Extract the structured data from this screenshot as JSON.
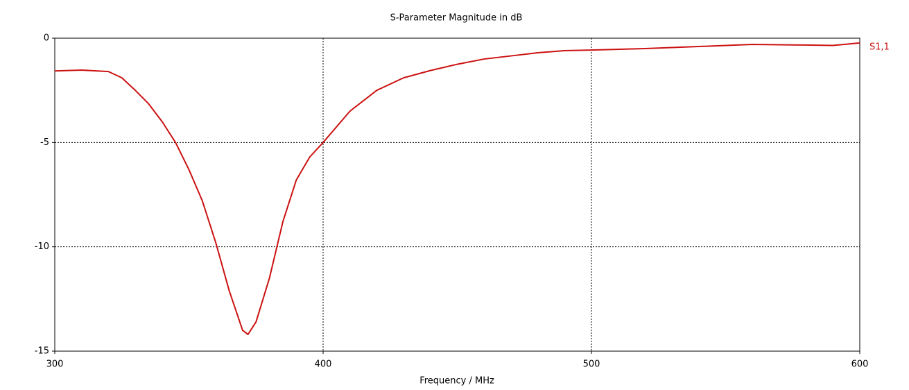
{
  "chart_data": {
    "type": "line",
    "title": "S-Parameter Magnitude in dB",
    "x_label": "Frequency / MHz",
    "x": [
      300,
      310,
      320,
      325,
      330,
      335,
      340,
      345,
      350,
      355,
      360,
      365,
      370,
      372,
      375,
      380,
      385,
      390,
      395,
      400,
      410,
      420,
      430,
      440,
      450,
      460,
      470,
      480,
      490,
      500,
      520,
      540,
      560,
      580,
      590,
      600
    ],
    "series": [
      {
        "name": "S1,1",
        "color": "#cc1111",
        "values": [
          -1.57,
          -1.53,
          -1.6,
          -1.9,
          -2.5,
          -3.15,
          -4.0,
          -5.0,
          -6.3,
          -7.8,
          -9.8,
          -12.1,
          -14.0,
          -14.2,
          -13.6,
          -11.5,
          -8.8,
          -6.8,
          -5.7,
          -5.0,
          -3.5,
          -2.5,
          -1.9,
          -1.55,
          -1.25,
          -1.0,
          -0.85,
          -0.7,
          -0.6,
          -0.57,
          -0.5,
          -0.4,
          -0.3,
          -0.33,
          -0.35,
          -0.23
        ]
      }
    ],
    "xlim": [
      300,
      600
    ],
    "ylim": [
      -15,
      0
    ],
    "xticks": [
      300,
      400,
      500,
      600
    ],
    "yticks": [
      0,
      -5,
      -10,
      -15
    ],
    "grid": true
  }
}
